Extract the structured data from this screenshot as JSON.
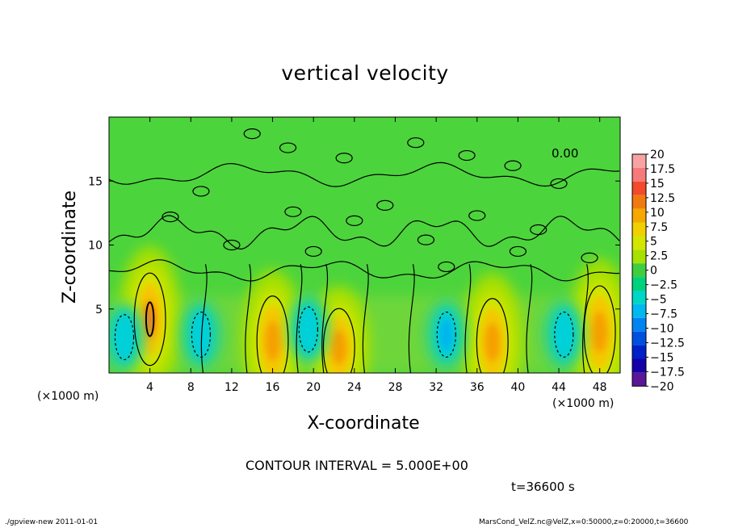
{
  "chart_data": {
    "type": "heatmap",
    "title": "vertical velocity",
    "xlabel": "X-coordinate",
    "ylabel": "Z-coordinate",
    "x_unit": "(×1000 m)",
    "x_unit_right": "(×1000 m)",
    "xlim": [
      0,
      50
    ],
    "ylim": [
      0,
      20
    ],
    "x_ticks": [
      4,
      8,
      12,
      16,
      20,
      24,
      28,
      32,
      36,
      40,
      44,
      48
    ],
    "y_ticks": [
      5,
      10,
      15
    ],
    "contour_label": "0.00",
    "contour_interval_text": "CONTOUR INTERVAL = 5.000E+00",
    "time_text": "t=36600 s",
    "colorbar": {
      "labels": [
        "20",
        "17.5",
        "15",
        "12.5",
        "10",
        "7.5",
        "5",
        "2.5",
        "0",
        "−2.5",
        "−5",
        "−7.5",
        "−10",
        "−12.5",
        "−15",
        "−17.5",
        "−20"
      ],
      "colors": [
        "#f7a3a3",
        "#f77a7a",
        "#f24a2a",
        "#f07a10",
        "#f5a800",
        "#f0d000",
        "#d2e600",
        "#a8e000",
        "#3fce3f",
        "#00d27c",
        "#00d6c6",
        "#00b8f0",
        "#0084f0",
        "#0050e0",
        "#0020c8",
        "#1400a8",
        "#5a1696"
      ]
    },
    "features": [
      {
        "type": "updraft",
        "x": 4.0,
        "z": 4.2,
        "peak": 15
      },
      {
        "type": "updraft",
        "x": 16.0,
        "z": 2.5,
        "peak": 10
      },
      {
        "type": "updraft",
        "x": 22.5,
        "z": 2.0,
        "peak": 8
      },
      {
        "type": "updraft",
        "x": 37.5,
        "z": 2.4,
        "peak": 10
      },
      {
        "type": "updraft",
        "x": 48.0,
        "z": 3.2,
        "peak": 10
      },
      {
        "type": "downdraft",
        "x": 1.5,
        "z": 2.8,
        "peak": -5
      },
      {
        "type": "downdraft",
        "x": 9.0,
        "z": 3.0,
        "peak": -4
      },
      {
        "type": "downdraft",
        "x": 19.5,
        "z": 3.4,
        "peak": -5
      },
      {
        "type": "downdraft",
        "x": 33.0,
        "z": 3.0,
        "peak": -8
      },
      {
        "type": "downdraft",
        "x": 44.5,
        "z": 3.0,
        "peak": -5
      }
    ]
  },
  "footer": {
    "left": "./gpview-new   2011-01-01",
    "right": "MarsCond_VelZ.nc@VelZ,x=0:50000,z=0:20000,t=36600"
  }
}
